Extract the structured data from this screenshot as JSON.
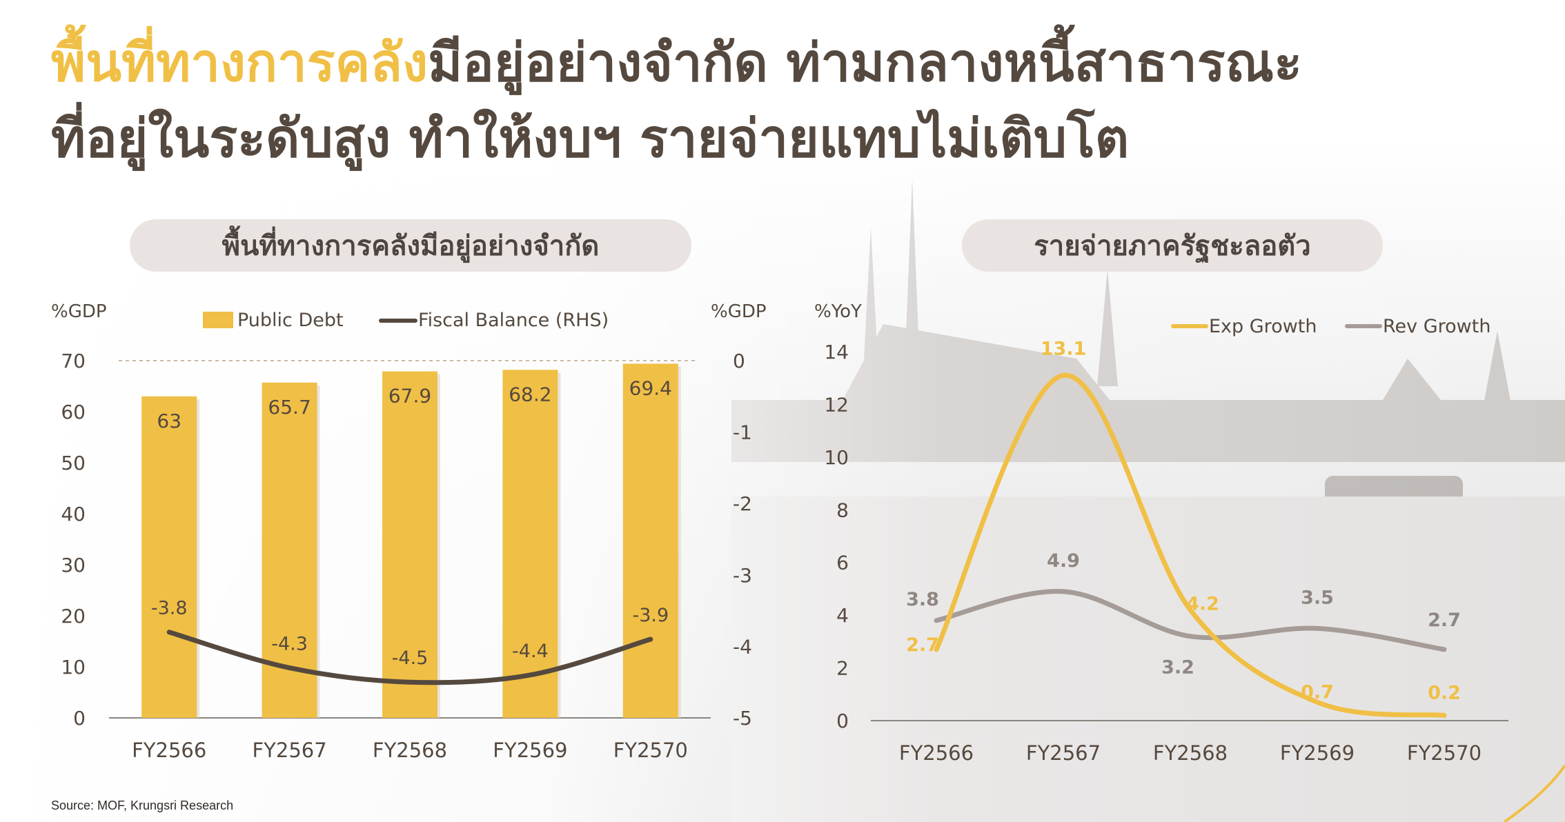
{
  "title": {
    "accent": "พื้นที่ทางการคลัง",
    "line1_rest": "มีอยู่อย่างจำกัด ท่ามกลางหนี้สาธารณะ",
    "line2": "ที่อยู่ในระดับสูง ทำให้งบฯ รายจ่ายแทบไม่เติบโต"
  },
  "colors": {
    "gold": "#f0bf45",
    "dark": "#55493f",
    "gray": "#a59b97",
    "pill": "#e9e4e2"
  },
  "source": "Source: MOF, Krungsri Research",
  "chart_data": [
    {
      "type": "bar",
      "title": "พื้นที่ทางการคลังมีอยู่อย่างจำกัด",
      "ylabel_left": "%GDP",
      "ylabel_right": "%GDP",
      "categories": [
        "FY2566",
        "FY2567",
        "FY2568",
        "FY2569",
        "FY2570"
      ],
      "ylim_left": [
        0,
        70
      ],
      "yticks_left": [
        0,
        10,
        20,
        30,
        40,
        50,
        60,
        70
      ],
      "ylim_right": [
        -5,
        0
      ],
      "yticks_right": [
        0,
        -1,
        -2,
        -3,
        -4,
        -5
      ],
      "legend_position": "top",
      "series": [
        {
          "name": "Public Debt",
          "type": "bar",
          "axis": "left",
          "color": "#f0bf45",
          "values": [
            63,
            65.7,
            67.9,
            68.2,
            69.4
          ],
          "labels": [
            "63",
            "65.7",
            "67.9",
            "68.2",
            "69.4"
          ]
        },
        {
          "name": "Fiscal Balance (RHS)",
          "type": "line",
          "axis": "right",
          "color": "#55493f",
          "values": [
            -3.8,
            -4.3,
            -4.5,
            -4.4,
            -3.9
          ],
          "labels": [
            "-3.8",
            "-4.3",
            "-4.5",
            "-4.4",
            "-3.9"
          ]
        }
      ]
    },
    {
      "type": "line",
      "title": "รายจ่ายภาครัฐชะลอตัว",
      "ylabel": "%YoY",
      "categories": [
        "FY2566",
        "FY2567",
        "FY2568",
        "FY2569",
        "FY2570"
      ],
      "ylim": [
        0,
        14
      ],
      "yticks": [
        0,
        2,
        4,
        6,
        8,
        10,
        12,
        14
      ],
      "legend_position": "top-right",
      "series": [
        {
          "name": "Exp Growth",
          "color": "#f0bf45",
          "values": [
            2.7,
            13.1,
            4.2,
            0.7,
            0.2
          ],
          "labels": [
            "2.7",
            "13.1",
            "4.2",
            "0.7",
            "0.2"
          ]
        },
        {
          "name": "Rev Growth",
          "color": "#a59b97",
          "values": [
            3.8,
            4.9,
            3.2,
            3.5,
            2.7
          ],
          "labels": [
            "3.8",
            "4.9",
            "3.2",
            "3.5",
            "2.7"
          ]
        }
      ]
    }
  ]
}
